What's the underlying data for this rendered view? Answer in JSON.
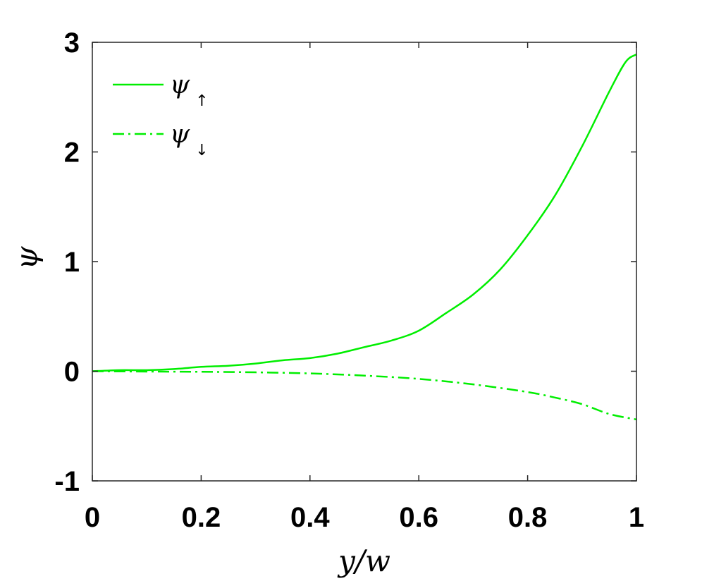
{
  "chart_data": {
    "type": "line",
    "xlabel": "y/w",
    "ylabel": "ψ",
    "xlim": [
      0,
      1
    ],
    "ylim": [
      -1,
      3
    ],
    "xticks": [
      0,
      0.2,
      0.4,
      0.6,
      0.8,
      1
    ],
    "xtick_labels": [
      "0",
      "0.2",
      "0.4",
      "0.6",
      "0.8",
      "1"
    ],
    "yticks": [
      -1,
      0,
      1,
      2,
      3
    ],
    "ytick_labels": [
      "-1",
      "0",
      "1",
      "2",
      "3"
    ],
    "grid": false,
    "legend_position": "top-left",
    "series": [
      {
        "name": "ψ↑",
        "legend_symbol": "ψ",
        "legend_subscript": "↑",
        "style": "solid",
        "color": "#00ee00",
        "x": [
          0,
          0.05,
          0.1,
          0.15,
          0.2,
          0.25,
          0.3,
          0.35,
          0.4,
          0.45,
          0.5,
          0.55,
          0.6,
          0.65,
          0.7,
          0.75,
          0.8,
          0.85,
          0.9,
          0.95,
          0.98,
          1.0
        ],
        "y": [
          0,
          0.01,
          0.01,
          0.02,
          0.04,
          0.05,
          0.07,
          0.1,
          0.12,
          0.16,
          0.22,
          0.28,
          0.37,
          0.53,
          0.7,
          0.93,
          1.24,
          1.6,
          2.05,
          2.55,
          2.82,
          2.89
        ]
      },
      {
        "name": "ψ↓",
        "legend_symbol": "ψ",
        "legend_subscript": "↓",
        "style": "dashdot",
        "color": "#00ee00",
        "x": [
          0,
          0.1,
          0.2,
          0.3,
          0.4,
          0.5,
          0.6,
          0.7,
          0.8,
          0.85,
          0.9,
          0.95,
          1.0
        ],
        "y": [
          0,
          -0.003,
          -0.005,
          -0.01,
          -0.02,
          -0.04,
          -0.07,
          -0.12,
          -0.19,
          -0.24,
          -0.3,
          -0.39,
          -0.44
        ]
      }
    ]
  }
}
